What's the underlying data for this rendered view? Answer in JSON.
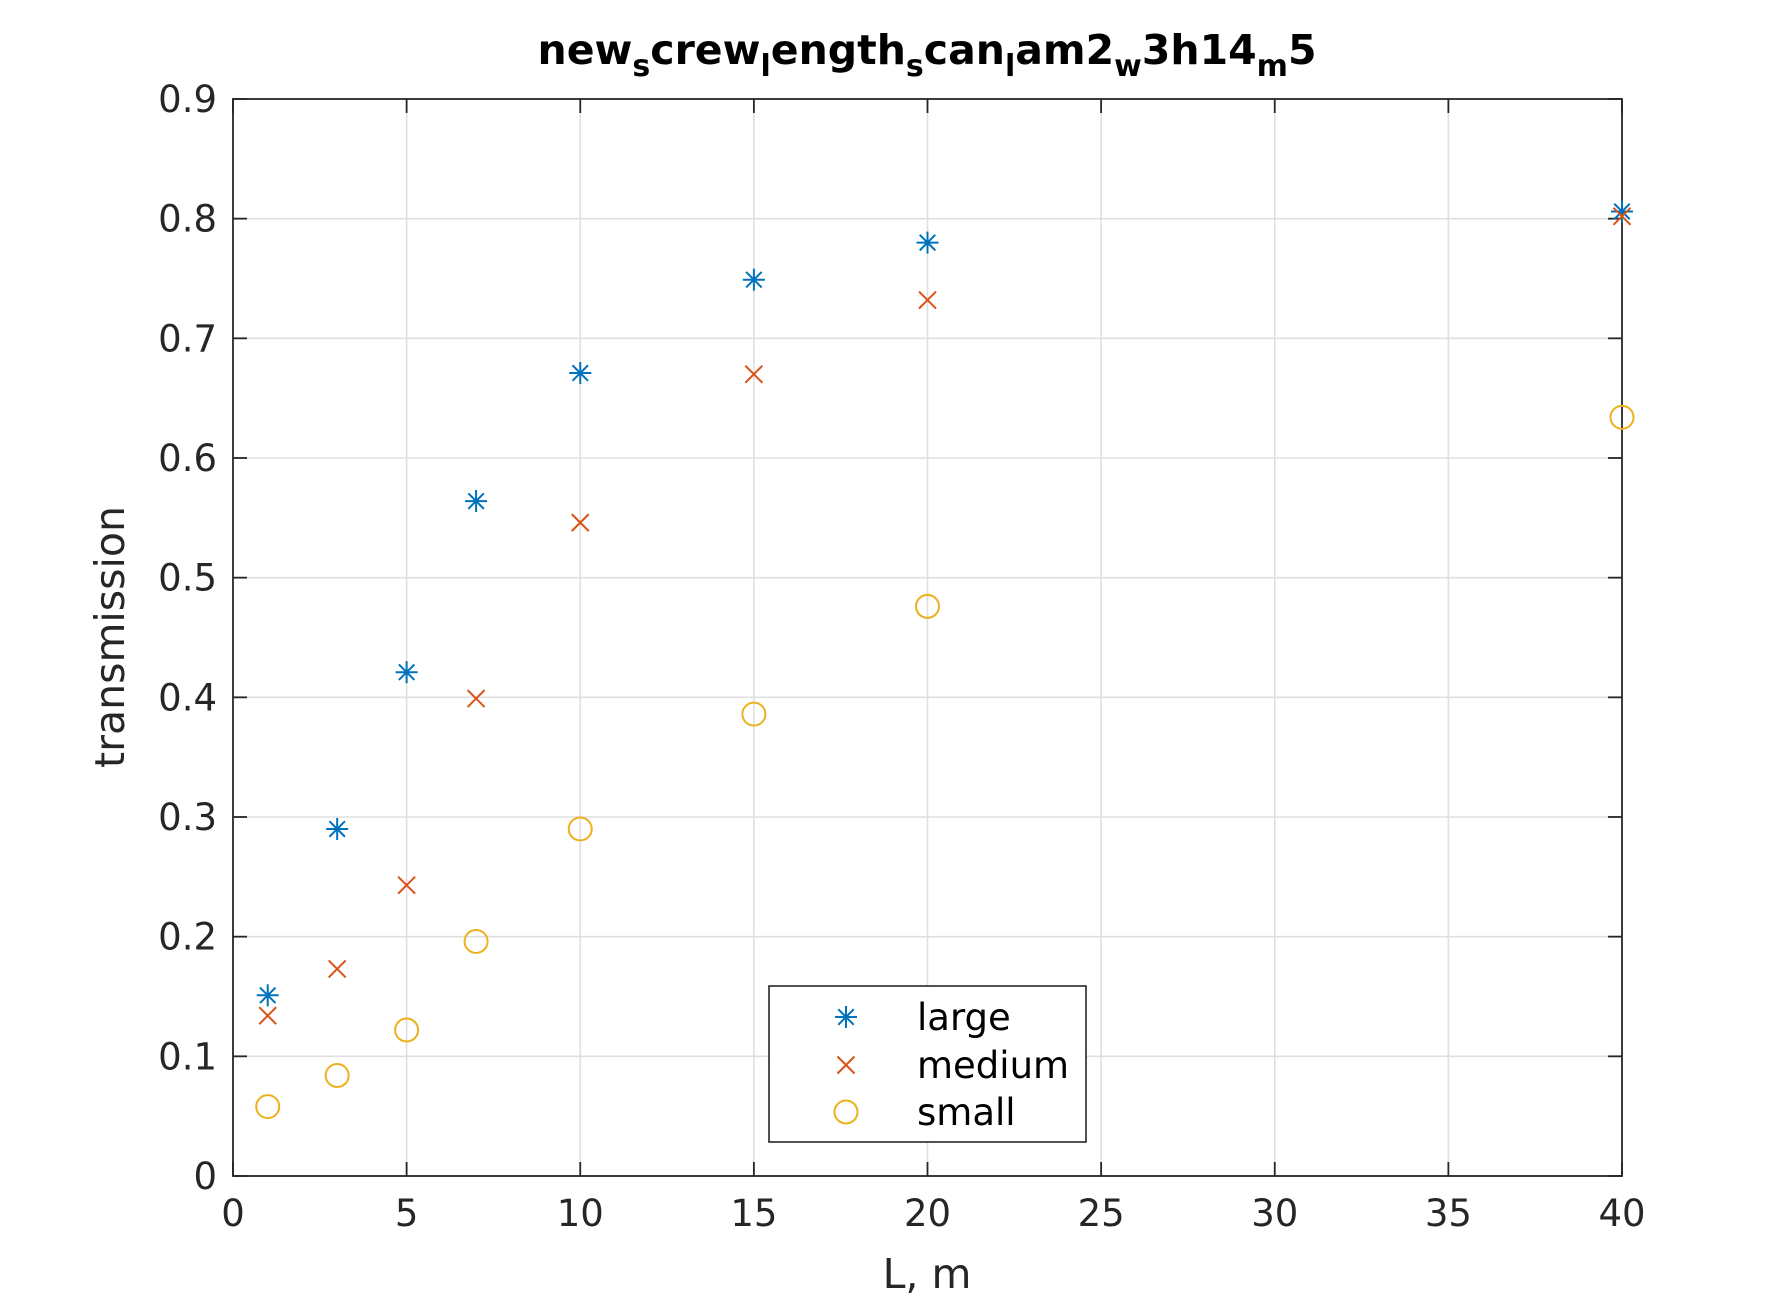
{
  "chart_data": {
    "type": "scatter",
    "title_parts": [
      {
        "text": "new",
        "sub": false
      },
      {
        "text": "s",
        "sub": true
      },
      {
        "text": "crew",
        "sub": false
      },
      {
        "text": "l",
        "sub": true
      },
      {
        "text": "ength",
        "sub": false
      },
      {
        "text": "s",
        "sub": true
      },
      {
        "text": "can",
        "sub": false
      },
      {
        "text": "l",
        "sub": true
      },
      {
        "text": "am2",
        "sub": false
      },
      {
        "text": "w",
        "sub": true
      },
      {
        "text": "3h14",
        "sub": false
      },
      {
        "text": "m",
        "sub": true
      },
      {
        "text": "5",
        "sub": false
      }
    ],
    "xlabel": "L, m",
    "ylabel": "transmission",
    "xlim": [
      0,
      40
    ],
    "ylim": [
      0,
      0.9
    ],
    "xticks": [
      0,
      5,
      10,
      15,
      20,
      25,
      30,
      35,
      40
    ],
    "yticks": [
      0,
      0.1,
      0.2,
      0.3,
      0.4,
      0.5,
      0.6,
      0.7,
      0.8,
      0.9
    ],
    "xtick_labels": [
      "0",
      "5",
      "10",
      "15",
      "20",
      "25",
      "30",
      "35",
      "40"
    ],
    "ytick_labels": [
      "0",
      "0.1",
      "0.2",
      "0.3",
      "0.4",
      "0.5",
      "0.6",
      "0.7",
      "0.8",
      "0.9"
    ],
    "grid": true,
    "legend_position": "bottom-center",
    "x": [
      1,
      3,
      5,
      7,
      10,
      15,
      20,
      40
    ],
    "series": [
      {
        "name": "large",
        "marker": "asterisk",
        "color": "#0072BD",
        "values": [
          0.151,
          0.29,
          0.421,
          0.564,
          0.671,
          0.749,
          0.78,
          0.806
        ]
      },
      {
        "name": "medium",
        "marker": "cross",
        "color": "#D95319",
        "values": [
          0.134,
          0.173,
          0.243,
          0.399,
          0.546,
          0.67,
          0.732,
          0.802
        ]
      },
      {
        "name": "small",
        "marker": "circle",
        "color": "#EDB120",
        "values": [
          0.058,
          0.084,
          0.122,
          0.196,
          0.29,
          0.386,
          0.476,
          0.634
        ]
      }
    ]
  }
}
